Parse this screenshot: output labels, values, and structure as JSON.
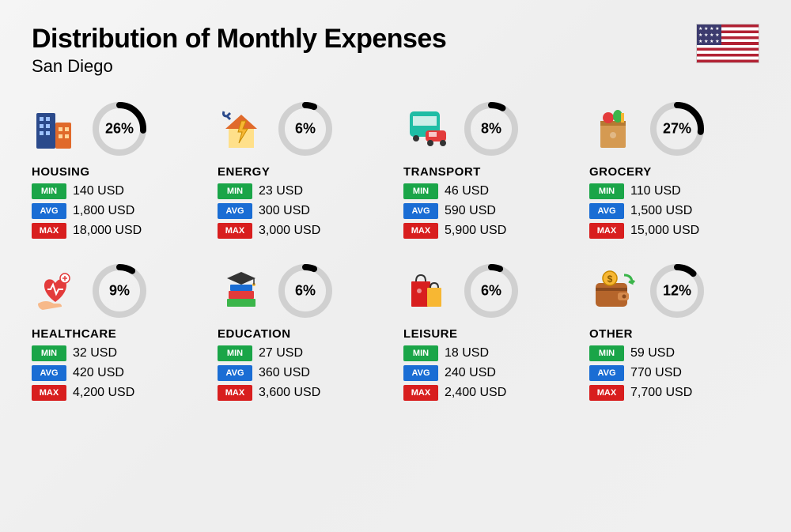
{
  "title": "Distribution of Monthly Expenses",
  "subtitle": "San Diego",
  "flag": "us",
  "currency": "USD",
  "donut": {
    "track_color": "#d0d0d0",
    "fill_color": "#000000",
    "stroke_width": 8,
    "radius": 30
  },
  "badges": {
    "min": {
      "label": "MIN",
      "color": "#1aa548"
    },
    "avg": {
      "label": "AVG",
      "color": "#1a6dd4"
    },
    "max": {
      "label": "MAX",
      "color": "#d81e1e"
    }
  },
  "categories": [
    {
      "name": "HOUSING",
      "percent": 26,
      "min": "140 USD",
      "avg": "1,800 USD",
      "max": "18,000 USD",
      "icon": "buildings"
    },
    {
      "name": "ENERGY",
      "percent": 6,
      "min": "23 USD",
      "avg": "300 USD",
      "max": "3,000 USD",
      "icon": "energy-house"
    },
    {
      "name": "TRANSPORT",
      "percent": 8,
      "min": "46 USD",
      "avg": "590 USD",
      "max": "5,900 USD",
      "icon": "bus-car"
    },
    {
      "name": "GROCERY",
      "percent": 27,
      "min": "110 USD",
      "avg": "1,500 USD",
      "max": "15,000 USD",
      "icon": "grocery-bag"
    },
    {
      "name": "HEALTHCARE",
      "percent": 9,
      "min": "32 USD",
      "avg": "420 USD",
      "max": "4,200 USD",
      "icon": "heart-hand"
    },
    {
      "name": "EDUCATION",
      "percent": 6,
      "min": "27 USD",
      "avg": "360 USD",
      "max": "3,600 USD",
      "icon": "grad-books"
    },
    {
      "name": "LEISURE",
      "percent": 6,
      "min": "18 USD",
      "avg": "240 USD",
      "max": "2,400 USD",
      "icon": "shopping-bags"
    },
    {
      "name": "OTHER",
      "percent": 12,
      "min": "59 USD",
      "avg": "770 USD",
      "max": "7,700 USD",
      "icon": "wallet-money"
    }
  ]
}
